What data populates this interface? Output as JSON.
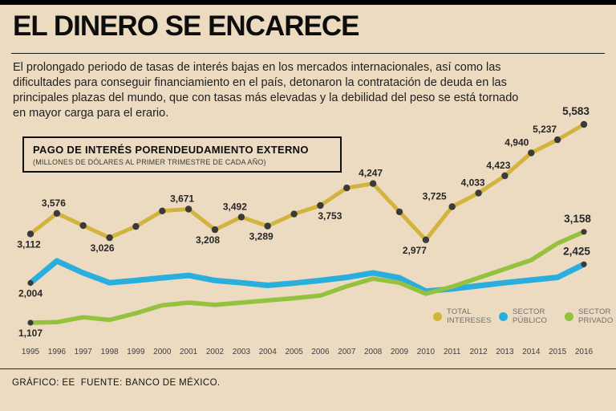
{
  "page": {
    "background": "#ecdbc0",
    "top_bar_color": "#000000"
  },
  "header": {
    "title": "EL DINERO SE ENCARECE"
  },
  "intro": {
    "text": "El prolongado periodo de tasas de interés bajas en los mercados internacionales, así como las dificultades para conseguir financiamiento en el país, detonaron la contratación de deuda en las principales plazas del mundo, que con tasas más elevadas y la debilidad del peso se está tornado en mayor carga para el erario."
  },
  "chart_box": {
    "title": "PAGO DE INTERÉS PORENDEUDAMIENTO EXTERNO",
    "subtitle": "(MILLONES DE DÓLARES AL PRIMER TRIMESTRE DE CADA AÑO)"
  },
  "chart_data": {
    "type": "line",
    "title": "PAGO DE INTERÉS PORENDEUDAMIENTO EXTERNO",
    "subtitle": "(MILLONES DE DÓLARES AL PRIMER TRIMESTRE DE CADA AÑO)",
    "x": [
      1995,
      1996,
      1997,
      1998,
      1999,
      2000,
      2001,
      2002,
      2003,
      2004,
      2005,
      2006,
      2007,
      2008,
      2009,
      2010,
      2011,
      2012,
      2013,
      2014,
      2015,
      2016
    ],
    "ylim": [
      1000,
      5800
    ],
    "grid": false,
    "legend_position": "bottom-right",
    "label_color": "#262626",
    "axis_label_color": "#3f3f3f",
    "series": [
      {
        "name": "TOTAL INTERESES",
        "color": "#d1b43e",
        "point_color": "#3a3a3a",
        "points": "all",
        "values": [
          3112,
          3576,
          3300,
          3026,
          3280,
          3630,
          3671,
          3208,
          3492,
          3289,
          3560,
          3753,
          4150,
          4247,
          3610,
          2977,
          3725,
          4033,
          4423,
          4940,
          5237,
          5583
        ],
        "labels": [
          {
            "x": 1995,
            "text": "3,112",
            "pos": "below",
            "dx": -2
          },
          {
            "x": 1996,
            "text": "3,576",
            "pos": "above",
            "dx": -4
          },
          {
            "x": 1998,
            "text": "3,026",
            "pos": "below",
            "dx": -9
          },
          {
            "x": 2001,
            "text": "3,671",
            "pos": "above",
            "dx": -8
          },
          {
            "x": 2002,
            "text": "3,208",
            "pos": "below",
            "dx": -9
          },
          {
            "x": 2003,
            "text": "3,492",
            "pos": "above",
            "dx": -8
          },
          {
            "x": 2004,
            "text": "3,289",
            "pos": "below",
            "dx": -8
          },
          {
            "x": 2006,
            "text": "3,753",
            "pos": "below",
            "dx": 12
          },
          {
            "x": 2008,
            "text": "4,247",
            "pos": "above",
            "dx": -3
          },
          {
            "x": 2010,
            "text": "2,977",
            "pos": "below",
            "dx": -14
          },
          {
            "x": 2011,
            "text": "3,725",
            "pos": "above",
            "dx": -22
          },
          {
            "x": 2012,
            "text": "4,033",
            "pos": "above",
            "dx": -7
          },
          {
            "x": 2013,
            "text": "4,423",
            "pos": "above",
            "dx": -8
          },
          {
            "x": 2014,
            "text": "4,940",
            "pos": "above",
            "dx": -18
          },
          {
            "x": 2015,
            "text": "5,237",
            "pos": "above",
            "dx": -16
          },
          {
            "x": 2016,
            "text": "5,583",
            "pos": "above",
            "dx": -10,
            "big": true
          }
        ]
      },
      {
        "name": "SECTOR PÚBLICO",
        "color": "#2aaede",
        "point_color": "#3a3a3a",
        "points": "ends",
        "values": [
          2004,
          2500,
          2230,
          2010,
          2060,
          2120,
          2175,
          2060,
          2010,
          1950,
          2000,
          2060,
          2130,
          2230,
          2120,
          1820,
          1870,
          1940,
          2010,
          2070,
          2130,
          2425
        ],
        "labels": [
          {
            "x": 1995,
            "text": "2,004",
            "pos": "below",
            "dx": 0
          },
          {
            "x": 2016,
            "text": "2,425",
            "pos": "above",
            "dx": -9,
            "big": true
          }
        ]
      },
      {
        "name": "SECTOR PRIVADO",
        "color": "#94c13e",
        "point_color": "#3a3a3a",
        "points": "ends",
        "values": [
          1107,
          1120,
          1230,
          1170,
          1320,
          1500,
          1560,
          1510,
          1560,
          1610,
          1660,
          1720,
          1930,
          2100,
          2010,
          1760,
          1920,
          2120,
          2320,
          2520,
          2900,
          3158
        ],
        "labels": [
          {
            "x": 1995,
            "text": "1,107",
            "pos": "below",
            "dx": 0
          },
          {
            "x": 2016,
            "text": "3,158",
            "pos": "above",
            "dx": -8,
            "big": true
          }
        ]
      }
    ],
    "legend": [
      {
        "label": "TOTAL INTERESES",
        "color": "#d1b43e"
      },
      {
        "label": "SECTOR PÚBLICO",
        "color": "#2aaede"
      },
      {
        "label": "SECTOR PRIVADO",
        "color": "#94c13e"
      }
    ]
  },
  "footer": {
    "text": "GRÁFICO: EE  FUENTE: BANCO DE MÉXICO."
  }
}
